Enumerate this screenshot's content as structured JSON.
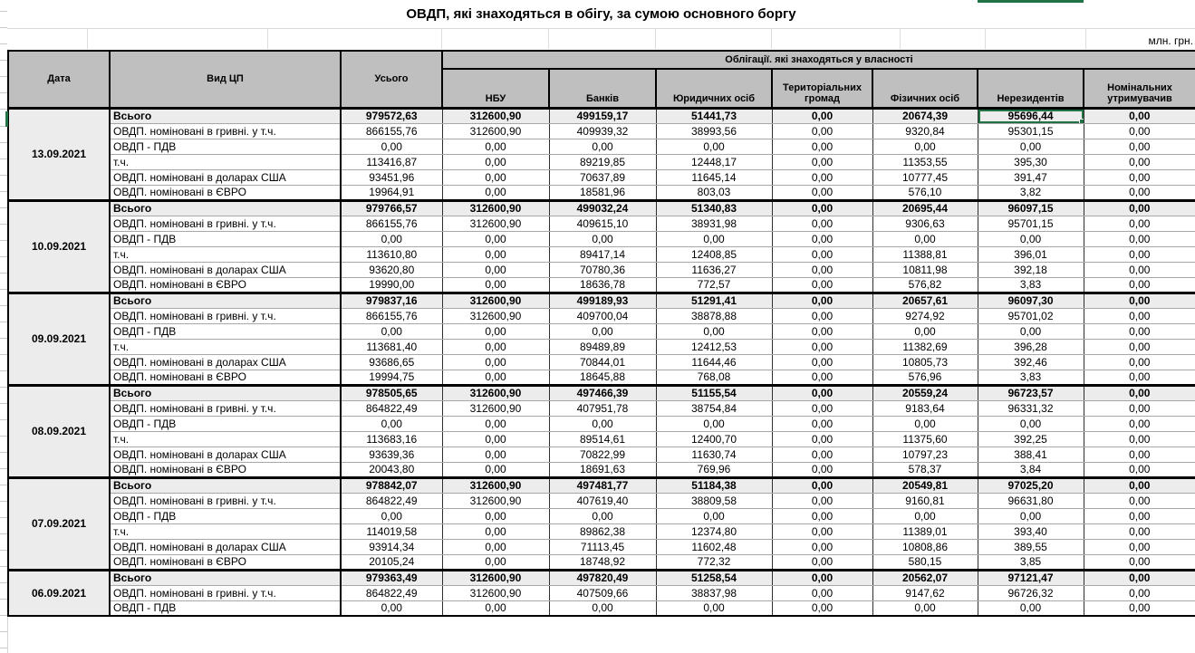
{
  "title": "ОВДП, які знаходяться в обігу, за сумою основного боргу",
  "unit_label": "млн. грн.",
  "colors": {
    "selection_green": "#217346",
    "header_bg": "#bfbfbf",
    "total_row_bg": "#ececec"
  },
  "table": {
    "headers": {
      "date": "Дата",
      "type": "Вид ЦП",
      "total": "Усього",
      "group": "Облігації. які знаходяться у власності",
      "owners": [
        "НБУ",
        "Банків",
        "Юридичних осіб",
        "Територіальних громад",
        "Фізичних осіб",
        "Нерезидентів",
        "Номінальних утримувачив"
      ]
    },
    "row_labels": [
      "Всього",
      "ОВДП. номіновані в гривні. у т.ч.",
      "ОВДП - ПДВ",
      "т.ч.",
      "ОВДП. номіновані в доларах США",
      "ОВДП. номіновані в ЄВРО"
    ],
    "blocks": [
      {
        "date": "13.09.2021",
        "rows": [
          [
            "979572,63",
            "312600,90",
            "499159,17",
            "51441,73",
            "0,00",
            "20674,39",
            "95696,44",
            "0,00"
          ],
          [
            "866155,76",
            "312600,90",
            "409939,32",
            "38993,56",
            "0,00",
            "9320,84",
            "95301,15",
            "0,00"
          ],
          [
            "0,00",
            "0,00",
            "0,00",
            "0,00",
            "0,00",
            "0,00",
            "0,00",
            "0,00"
          ],
          [
            "113416,87",
            "0,00",
            "89219,85",
            "12448,17",
            "0,00",
            "11353,55",
            "395,30",
            "0,00"
          ],
          [
            "93451,96",
            "0,00",
            "70637,89",
            "11645,14",
            "0,00",
            "10777,45",
            "391,47",
            "0,00"
          ],
          [
            "19964,91",
            "0,00",
            "18581,96",
            "803,03",
            "0,00",
            "576,10",
            "3,82",
            "0,00"
          ]
        ]
      },
      {
        "date": "10.09.2021",
        "rows": [
          [
            "979766,57",
            "312600,90",
            "499032,24",
            "51340,83",
            "0,00",
            "20695,44",
            "96097,15",
            "0,00"
          ],
          [
            "866155,76",
            "312600,90",
            "409615,10",
            "38931,98",
            "0,00",
            "9306,63",
            "95701,15",
            "0,00"
          ],
          [
            "0,00",
            "0,00",
            "0,00",
            "0,00",
            "0,00",
            "0,00",
            "0,00",
            "0,00"
          ],
          [
            "113610,80",
            "0,00",
            "89417,14",
            "12408,85",
            "0,00",
            "11388,81",
            "396,01",
            "0,00"
          ],
          [
            "93620,80",
            "0,00",
            "70780,36",
            "11636,27",
            "0,00",
            "10811,98",
            "392,18",
            "0,00"
          ],
          [
            "19990,00",
            "0,00",
            "18636,78",
            "772,57",
            "0,00",
            "576,82",
            "3,83",
            "0,00"
          ]
        ]
      },
      {
        "date": "09.09.2021",
        "rows": [
          [
            "979837,16",
            "312600,90",
            "499189,93",
            "51291,41",
            "0,00",
            "20657,61",
            "96097,30",
            "0,00"
          ],
          [
            "866155,76",
            "312600,90",
            "409700,04",
            "38878,88",
            "0,00",
            "9274,92",
            "95701,02",
            "0,00"
          ],
          [
            "0,00",
            "0,00",
            "0,00",
            "0,00",
            "0,00",
            "0,00",
            "0,00",
            "0,00"
          ],
          [
            "113681,40",
            "0,00",
            "89489,89",
            "12412,53",
            "0,00",
            "11382,69",
            "396,28",
            "0,00"
          ],
          [
            "93686,65",
            "0,00",
            "70844,01",
            "11644,46",
            "0,00",
            "10805,73",
            "392,46",
            "0,00"
          ],
          [
            "19994,75",
            "0,00",
            "18645,88",
            "768,08",
            "0,00",
            "576,96",
            "3,83",
            "0,00"
          ]
        ]
      },
      {
        "date": "08.09.2021",
        "rows": [
          [
            "978505,65",
            "312600,90",
            "497466,39",
            "51155,54",
            "0,00",
            "20559,24",
            "96723,57",
            "0,00"
          ],
          [
            "864822,49",
            "312600,90",
            "407951,78",
            "38754,84",
            "0,00",
            "9183,64",
            "96331,32",
            "0,00"
          ],
          [
            "0,00",
            "0,00",
            "0,00",
            "0,00",
            "0,00",
            "0,00",
            "0,00",
            "0,00"
          ],
          [
            "113683,16",
            "0,00",
            "89514,61",
            "12400,70",
            "0,00",
            "11375,60",
            "392,25",
            "0,00"
          ],
          [
            "93639,36",
            "0,00",
            "70822,99",
            "11630,74",
            "0,00",
            "10797,23",
            "388,41",
            "0,00"
          ],
          [
            "20043,80",
            "0,00",
            "18691,63",
            "769,96",
            "0,00",
            "578,37",
            "3,84",
            "0,00"
          ]
        ]
      },
      {
        "date": "07.09.2021",
        "rows": [
          [
            "978842,07",
            "312600,90",
            "497481,77",
            "51184,38",
            "0,00",
            "20549,81",
            "97025,20",
            "0,00"
          ],
          [
            "864822,49",
            "312600,90",
            "407619,40",
            "38809,58",
            "0,00",
            "9160,81",
            "96631,80",
            "0,00"
          ],
          [
            "0,00",
            "0,00",
            "0,00",
            "0,00",
            "0,00",
            "0,00",
            "0,00",
            "0,00"
          ],
          [
            "114019,58",
            "0,00",
            "89862,38",
            "12374,80",
            "0,00",
            "11389,01",
            "393,40",
            "0,00"
          ],
          [
            "93914,34",
            "0,00",
            "71113,45",
            "11602,48",
            "0,00",
            "10808,86",
            "389,55",
            "0,00"
          ],
          [
            "20105,24",
            "0,00",
            "18748,92",
            "772,32",
            "0,00",
            "580,15",
            "3,85",
            "0,00"
          ]
        ]
      },
      {
        "date": "06.09.2021",
        "rows": [
          [
            "979363,49",
            "312600,90",
            "497820,49",
            "51258,54",
            "0,00",
            "20562,07",
            "97121,47",
            "0,00"
          ],
          [
            "864822,49",
            "312600,90",
            "407509,66",
            "38837,98",
            "0,00",
            "9147,62",
            "96726,32",
            "0,00"
          ],
          [
            "0,00",
            "0,00",
            "0,00",
            "0,00",
            "0,00",
            "0,00",
            "0,00",
            "0,00"
          ]
        ]
      }
    ]
  },
  "selection": {
    "block": 0,
    "row": 0,
    "value_col": 6
  }
}
